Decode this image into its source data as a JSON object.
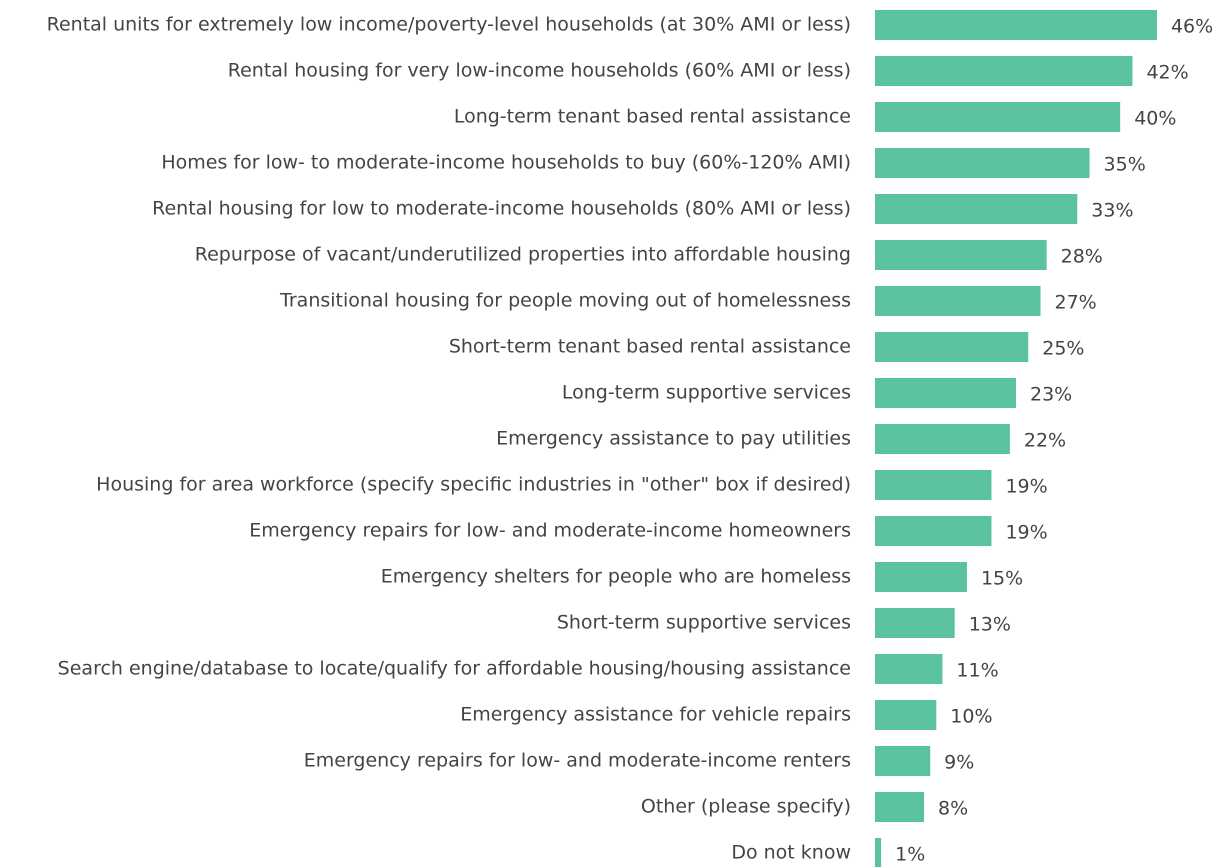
{
  "chart_data": {
    "type": "barh",
    "categories": [
      "Rental units for extremely low income/poverty-level households (at 30% AMI or less)",
      "Rental housing for very low-income households (60% AMI or less)",
      "Long-term tenant based rental assistance",
      "Homes for low- to moderate-income households to buy (60%-120% AMI)",
      "Rental housing for low to moderate-income households (80% AMI or less)",
      "Repurpose of vacant/underutilized properties into affordable housing",
      "Transitional housing for people moving out of homelessness",
      "Short-term tenant based rental assistance",
      "Long-term supportive services",
      "Emergency assistance to pay utilities",
      "Housing for area workforce (specify specific industries in \"other\" box if desired)",
      "Emergency repairs for low- and moderate-income homeowners",
      "Emergency shelters for people who are homeless",
      "Short-term supportive services",
      "Search engine/database to locate/qualify for affordable housing/housing assistance",
      "Emergency assistance for vehicle repairs",
      "Emergency repairs for low- and moderate-income renters",
      "Other (please specify)",
      "Do not know"
    ],
    "values": [
      46,
      42,
      40,
      35,
      33,
      28,
      27,
      25,
      23,
      22,
      19,
      19,
      15,
      13,
      11,
      10,
      9,
      8,
      1
    ],
    "value_labels": [
      "46%",
      "42%",
      "40%",
      "35%",
      "33%",
      "28%",
      "27%",
      "25%",
      "23%",
      "22%",
      "19%",
      "19%",
      "15%",
      "13%",
      "11%",
      "10%",
      "9%",
      "8%",
      "1%"
    ],
    "color": "#5bc2a0"
  }
}
